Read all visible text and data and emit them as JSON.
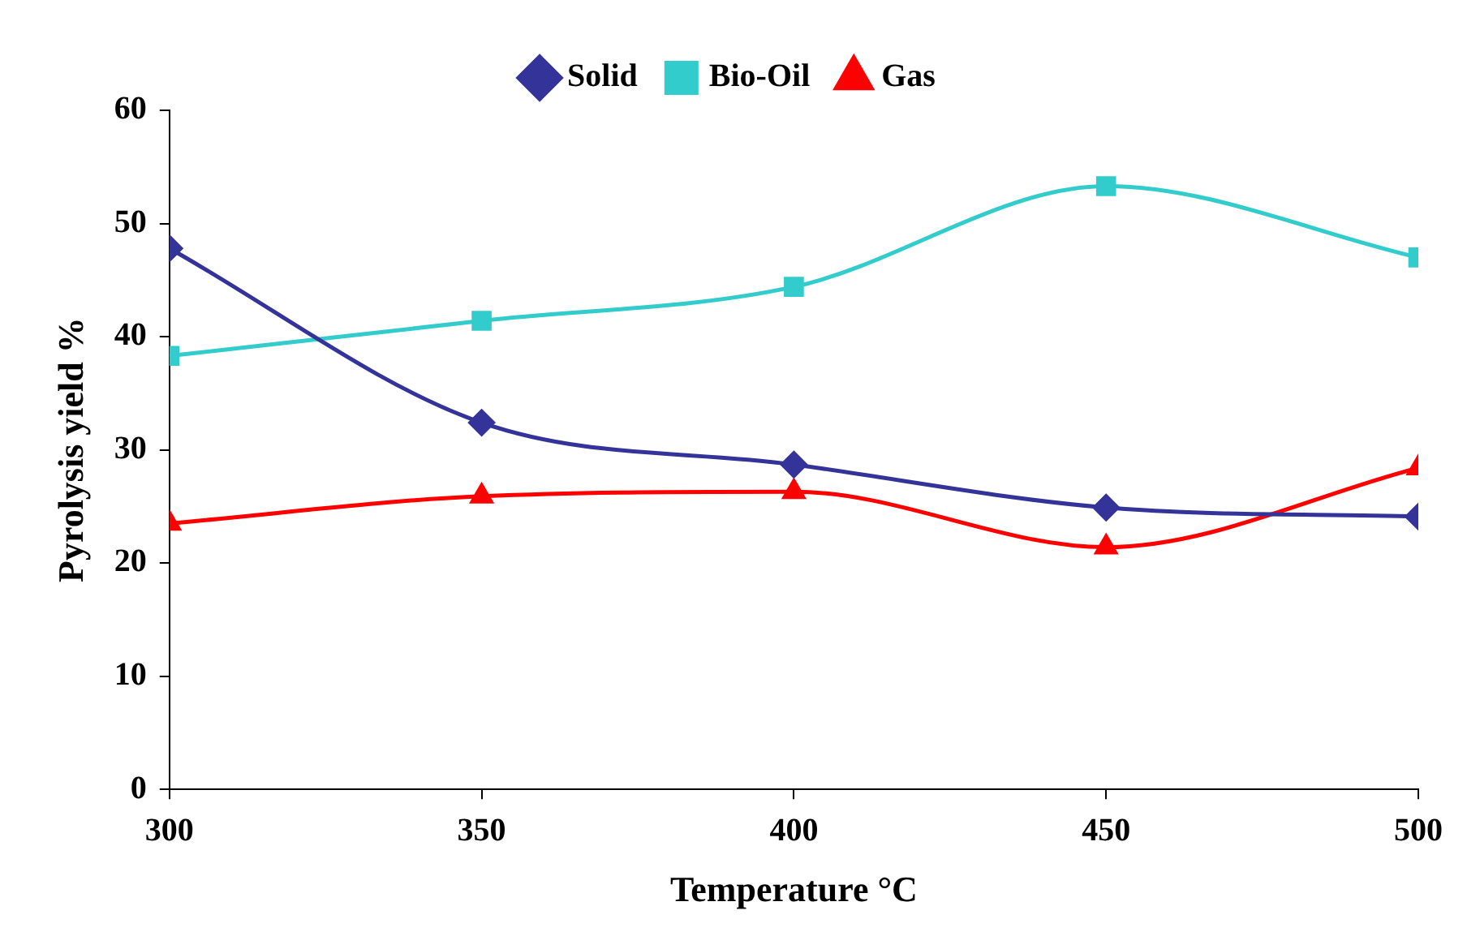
{
  "chart_data": {
    "type": "line",
    "xlabel": "Temperature °C",
    "ylabel": "Pyrolysis yield %",
    "x": [
      300,
      350,
      400,
      450,
      500
    ],
    "xlim": [
      300,
      500
    ],
    "xticks": [
      300,
      350,
      400,
      450,
      500
    ],
    "ylim": [
      0,
      60
    ],
    "yticks": [
      0,
      10,
      20,
      30,
      40,
      50,
      60
    ],
    "grid": false,
    "legend": "top",
    "line_style": "solid",
    "series": [
      {
        "name": "Solid",
        "color": "#333399",
        "marker": "diamond",
        "values": [
          47.8,
          32.4,
          28.7,
          24.9,
          24.1
        ]
      },
      {
        "name": "Bio-Oil",
        "color": "#33cccc",
        "marker": "square",
        "values": [
          38.3,
          41.4,
          44.4,
          53.3,
          47.0
        ]
      },
      {
        "name": "Gas",
        "color": "#ff0000",
        "marker": "triangle",
        "values": [
          23.5,
          25.9,
          26.3,
          21.4,
          28.4
        ]
      }
    ]
  }
}
